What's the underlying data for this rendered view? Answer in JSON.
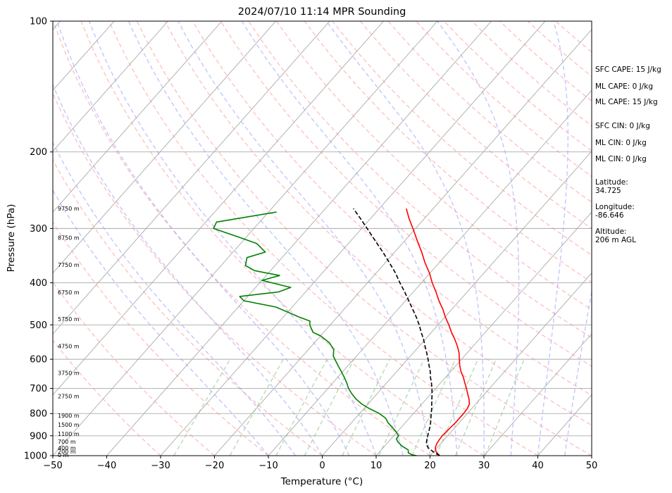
{
  "chart_data": {
    "type": "skew-t",
    "title": "2024/07/10 11:14 MPR Sounding",
    "xlabel": "Temperature (°C)",
    "ylabel": "Pressure (hPa)",
    "xlim": [
      -50,
      50
    ],
    "ylim": [
      1000,
      100
    ],
    "y_scale": "log",
    "x_ticks": [
      -50,
      -40,
      -30,
      -20,
      -10,
      0,
      10,
      20,
      30,
      40,
      50
    ],
    "x_tick_labels": [
      "−50",
      "−40",
      "−30",
      "−20",
      "−10",
      "0",
      "10",
      "20",
      "30",
      "40",
      "50"
    ],
    "y_ticks": [
      1000,
      900,
      800,
      700,
      600,
      500,
      400,
      300,
      200,
      100
    ],
    "y_tick_labels": [
      "1000",
      "900",
      "800",
      "700",
      "600",
      "500",
      "400",
      "300",
      "200",
      "100"
    ],
    "grid": true,
    "colors": {
      "temperature": "#ff0000",
      "dewpoint": "#008000",
      "parcel": "#000000",
      "dry_adiabats": "#ff9999",
      "moist_adiabats": "#9f9fff",
      "mixing_ratio": "#99cc99",
      "isotherms": "#aaaaaa"
    },
    "series": [
      {
        "key": "temperature",
        "style": "solid",
        "points": [
          [
            1000,
            21.8
          ],
          [
            980,
            20.5
          ],
          [
            960,
            19.7
          ],
          [
            940,
            19.3
          ],
          [
            920,
            19.1
          ],
          [
            900,
            19.0
          ],
          [
            880,
            19.1
          ],
          [
            860,
            19.2
          ],
          [
            840,
            19.3
          ],
          [
            820,
            19.3
          ],
          [
            800,
            19.3
          ],
          [
            780,
            19.2
          ],
          [
            760,
            18.8
          ],
          [
            740,
            17.9
          ],
          [
            720,
            16.8
          ],
          [
            700,
            15.7
          ],
          [
            680,
            14.5
          ],
          [
            660,
            13.3
          ],
          [
            640,
            11.9
          ],
          [
            620,
            10.7
          ],
          [
            600,
            9.6
          ],
          [
            580,
            8.5
          ],
          [
            560,
            7.1
          ],
          [
            540,
            5.5
          ],
          [
            520,
            3.7
          ],
          [
            500,
            2.0
          ],
          [
            480,
            0.1
          ],
          [
            460,
            -1.7
          ],
          [
            440,
            -3.8
          ],
          [
            420,
            -5.8
          ],
          [
            400,
            -8.0
          ],
          [
            380,
            -10.1
          ],
          [
            360,
            -12.6
          ],
          [
            340,
            -15.0
          ],
          [
            320,
            -17.7
          ],
          [
            300,
            -20.5
          ],
          [
            285,
            -22.8
          ],
          [
            270,
            -25.0
          ]
        ]
      },
      {
        "key": "dewpoint",
        "style": "solid",
        "points": [
          [
            1000,
            17.5
          ],
          [
            995,
            16.5
          ],
          [
            985,
            15.5
          ],
          [
            970,
            15.0
          ],
          [
            950,
            13.2
          ],
          [
            930,
            11.8
          ],
          [
            915,
            11.0
          ],
          [
            900,
            10.9
          ],
          [
            880,
            9.7
          ],
          [
            860,
            8.3
          ],
          [
            840,
            6.8
          ],
          [
            820,
            5.6
          ],
          [
            800,
            3.7
          ],
          [
            780,
            1.1
          ],
          [
            760,
            -1.2
          ],
          [
            740,
            -3.1
          ],
          [
            720,
            -4.7
          ],
          [
            700,
            -6.2
          ],
          [
            680,
            -7.4
          ],
          [
            660,
            -8.8
          ],
          [
            640,
            -10.3
          ],
          [
            620,
            -11.9
          ],
          [
            600,
            -13.5
          ],
          [
            590,
            -14.3
          ],
          [
            570,
            -15.3
          ],
          [
            550,
            -17.2
          ],
          [
            530,
            -20.0
          ],
          [
            520,
            -22.0
          ],
          [
            500,
            -23.8
          ],
          [
            490,
            -24.4
          ],
          [
            480,
            -27.0
          ],
          [
            455,
            -33.0
          ],
          [
            440,
            -40.0
          ],
          [
            430,
            -41.5
          ],
          [
            420,
            -35.0
          ],
          [
            410,
            -33.5
          ],
          [
            395,
            -40.0
          ],
          [
            385,
            -37.5
          ],
          [
            375,
            -43.0
          ],
          [
            365,
            -45.5
          ],
          [
            350,
            -46.5
          ],
          [
            340,
            -44.0
          ],
          [
            325,
            -47.0
          ],
          [
            315,
            -51.0
          ],
          [
            300,
            -57.5
          ],
          [
            290,
            -58.0
          ],
          [
            275,
            -48.5
          ]
        ]
      },
      {
        "key": "parcel",
        "style": "dashed",
        "points": [
          [
            1000,
            21.8
          ],
          [
            980,
            20.0
          ],
          [
            960,
            18.4
          ],
          [
            940,
            17.4
          ],
          [
            920,
            16.8
          ],
          [
            900,
            16.3
          ],
          [
            880,
            15.8
          ],
          [
            860,
            15.3
          ],
          [
            840,
            14.7
          ],
          [
            820,
            14.0
          ],
          [
            800,
            13.3
          ],
          [
            780,
            12.6
          ],
          [
            760,
            11.8
          ],
          [
            740,
            11.0
          ],
          [
            720,
            10.2
          ],
          [
            700,
            9.3
          ],
          [
            680,
            8.3
          ],
          [
            660,
            7.2
          ],
          [
            640,
            6.2
          ],
          [
            620,
            5.0
          ],
          [
            600,
            3.8
          ],
          [
            580,
            2.5
          ],
          [
            560,
            1.1
          ],
          [
            540,
            -0.3
          ],
          [
            520,
            -1.9
          ],
          [
            500,
            -3.5
          ],
          [
            480,
            -5.3
          ],
          [
            460,
            -7.3
          ],
          [
            440,
            -9.4
          ],
          [
            420,
            -11.6
          ],
          [
            400,
            -14.0
          ],
          [
            380,
            -16.4
          ],
          [
            360,
            -19.2
          ],
          [
            340,
            -22.2
          ],
          [
            320,
            -25.5
          ],
          [
            300,
            -29.0
          ],
          [
            285,
            -31.8
          ],
          [
            270,
            -34.8
          ]
        ]
      }
    ],
    "altitude_labels": [
      {
        "pressure": 996,
        "label": "0 m"
      },
      {
        "pressure": 978,
        "label": "200 m"
      },
      {
        "pressure": 960,
        "label": "400 m"
      },
      {
        "pressure": 928,
        "label": "700 m"
      },
      {
        "pressure": 890,
        "label": "1100 m"
      },
      {
        "pressure": 848,
        "label": "1500 m"
      },
      {
        "pressure": 809,
        "label": "1900 m"
      },
      {
        "pressure": 729,
        "label": "2750 m"
      },
      {
        "pressure": 645,
        "label": "3750 m"
      },
      {
        "pressure": 560,
        "label": "4750 m"
      },
      {
        "pressure": 485,
        "label": "5750 m"
      },
      {
        "pressure": 421,
        "label": "6750 m"
      },
      {
        "pressure": 364,
        "label": "7750 m"
      },
      {
        "pressure": 315,
        "label": "8750 m"
      },
      {
        "pressure": 270,
        "label": "9750 m"
      }
    ]
  },
  "side_panel": {
    "sfc_cape": "SFC CAPE: 15 J/kg",
    "ml_cape_1": "ML CAPE: 0 J/kg",
    "ml_cape_2": "ML CAPE: 15 J/kg",
    "sfc_cin": "SFC CIN: 0 J/kg",
    "ml_cin_1": "ML CIN: 0 J/kg",
    "ml_cin_2": "ML CIN: 0 J/kg",
    "latitude_label": "Latitude:",
    "latitude_value": "34.725",
    "longitude_label": "Longitude:",
    "longitude_value": "-86.646",
    "altitude_label": "Altitude:",
    "altitude_value": "206 m AGL"
  }
}
